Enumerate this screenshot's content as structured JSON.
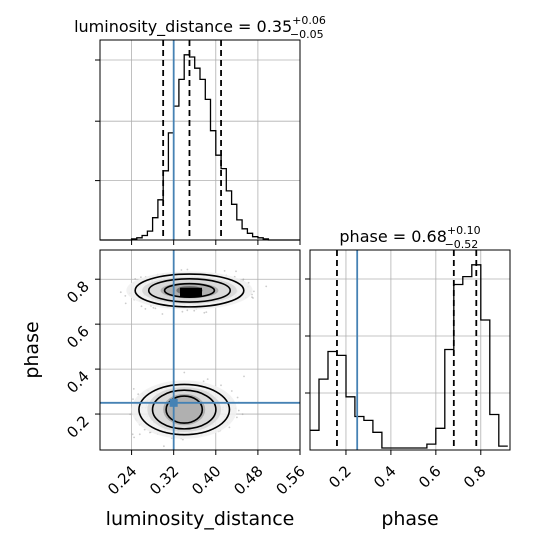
{
  "chart_data": {
    "type": "corner",
    "parameters": [
      "luminosity_distance",
      "phase"
    ],
    "truths": {
      "luminosity_distance": 0.32,
      "phase": 0.25
    },
    "titles": {
      "luminosity_distance": {
        "prefix": "luminosity_distance = ",
        "value": "0.35",
        "plus": "+0.06",
        "minus": "−0.05"
      },
      "phase": {
        "prefix": "phase = ",
        "value": "0.68",
        "plus": "+0.10",
        "minus": "−0.52"
      }
    },
    "axis_labels": {
      "x_left": "luminosity_distance",
      "x_right": "phase",
      "y_left": "phase"
    },
    "ticks": {
      "luminosity_distance": [
        "0.24",
        "0.32",
        "0.40",
        "0.48",
        "0.56"
      ],
      "phase_x": [
        "0.2",
        "0.4",
        "0.6",
        "0.8"
      ],
      "phase_y": [
        "0.2",
        "0.4",
        "0.6",
        "0.8"
      ]
    },
    "axis_ranges": {
      "luminosity_distance": [
        0.18,
        0.56
      ],
      "phase": [
        0.04,
        0.93
      ]
    },
    "marginal_luminosity_distance": {
      "bin_edges": [
        0.18,
        0.19,
        0.2,
        0.21,
        0.22,
        0.23,
        0.24,
        0.25,
        0.26,
        0.27,
        0.28,
        0.29,
        0.3,
        0.31,
        0.32,
        0.33,
        0.34,
        0.35,
        0.36,
        0.37,
        0.38,
        0.39,
        0.4,
        0.41,
        0.42,
        0.43,
        0.44,
        0.45,
        0.46,
        0.47,
        0.48,
        0.49,
        0.5,
        0.51,
        0.52,
        0.53,
        0.54,
        0.55,
        0.56
      ],
      "counts": [
        0,
        0,
        0,
        0,
        0,
        0,
        0.5,
        1,
        2,
        4,
        10,
        18,
        31,
        48,
        60,
        72,
        83,
        82,
        77,
        72,
        63,
        49,
        38,
        32,
        22,
        16,
        9,
        5,
        3,
        1.5,
        1,
        0.5,
        0,
        0,
        0,
        0,
        0,
        0
      ],
      "quantile_lines": [
        0.3,
        0.35,
        0.41
      ]
    },
    "marginal_phase": {
      "bin_edges": [
        0.04,
        0.08,
        0.12,
        0.16,
        0.2,
        0.24,
        0.28,
        0.32,
        0.36,
        0.4,
        0.44,
        0.48,
        0.52,
        0.56,
        0.6,
        0.64,
        0.68,
        0.72,
        0.76,
        0.8,
        0.84,
        0.88,
        0.92
      ],
      "counts": [
        10,
        36,
        50,
        48,
        27,
        17,
        15,
        9,
        1,
        1,
        1,
        1,
        1,
        3,
        11,
        51,
        84,
        88,
        94,
        66,
        18,
        2
      ],
      "quantile_lines": [
        0.16,
        0.68,
        0.78
      ]
    },
    "joint_2d": {
      "x_param": "luminosity_distance",
      "y_param": "phase",
      "modes": [
        {
          "center": [
            0.35,
            0.75
          ],
          "contour_half_widths": [
            [
              0.12,
              0.085
            ],
            [
              0.09,
              0.06
            ],
            [
              0.055,
              0.035
            ],
            [
              0.025,
              0.02
            ]
          ]
        },
        {
          "center": [
            0.34,
            0.22
          ],
          "contour_half_widths": [
            [
              0.1,
              0.13
            ],
            [
              0.07,
              0.1
            ],
            [
              0.04,
              0.07
            ]
          ]
        }
      ]
    },
    "grid": true
  }
}
